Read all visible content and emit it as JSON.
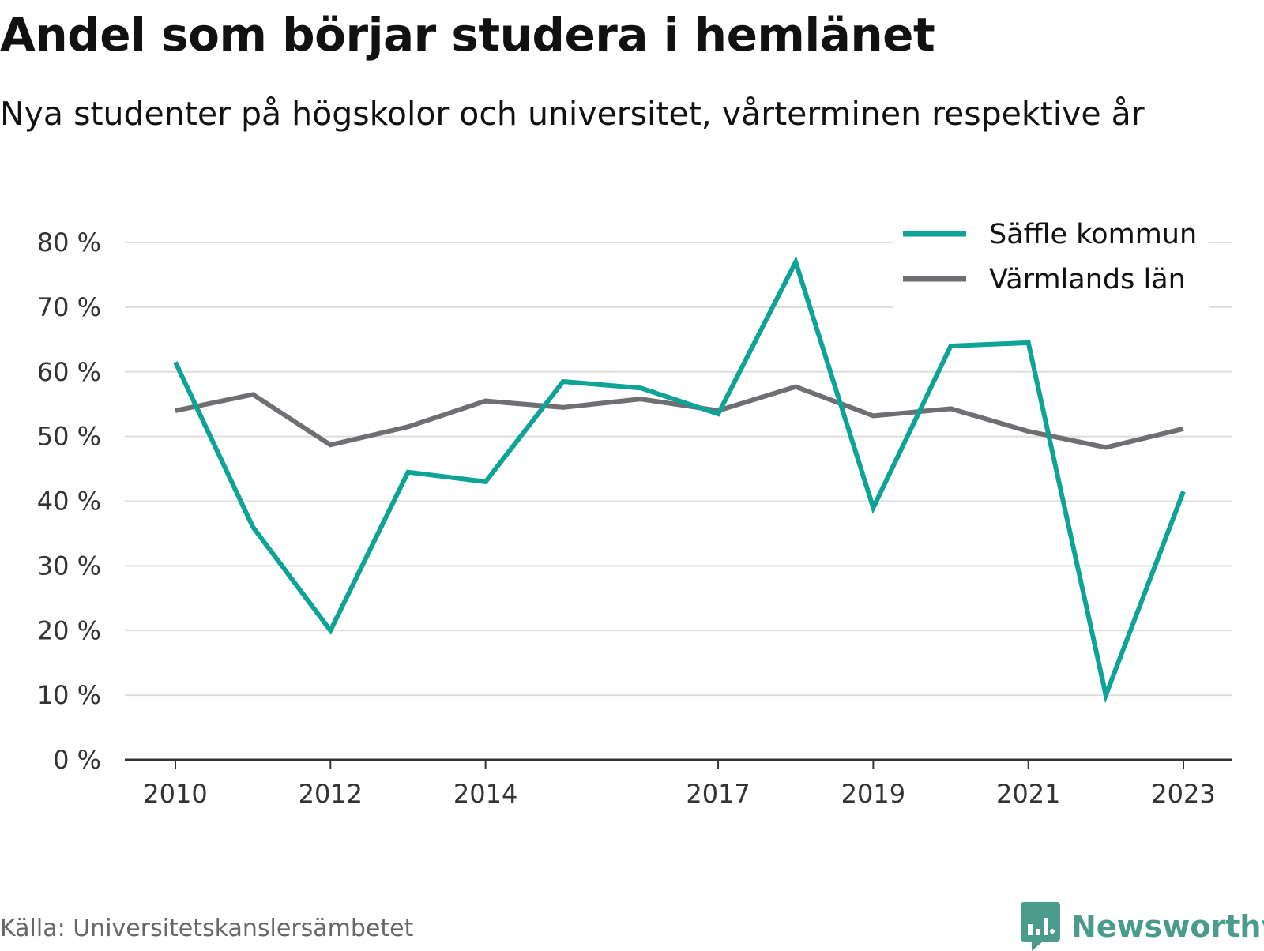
{
  "title": "Andel som börjar studera i hemlänet",
  "subtitle": "Nya studenter på högskolor och universitet, vårterminen respektive år",
  "source": "Källa: Universitetskanslersämbetet",
  "brand": "Newsworthy",
  "brand_icon": "newsworthy-logo-icon",
  "colors": {
    "saffle": "#0da396",
    "varmland": "#6e6e73",
    "grid": "#dddddd",
    "axis": "#333333",
    "brand": "#4a9b8c"
  },
  "chart_data": {
    "type": "line",
    "x": [
      2010,
      2011,
      2012,
      2013,
      2014,
      2015,
      2016,
      2017,
      2018,
      2019,
      2020,
      2021,
      2022,
      2023
    ],
    "x_tick_labels": [
      "2010",
      "2012",
      "2014",
      "2017",
      "2019",
      "2021",
      "2023"
    ],
    "y_tick_labels": [
      "0 %",
      "10 %",
      "20 %",
      "30 %",
      "40 %",
      "50 %",
      "60 %",
      "70 %",
      "80 %"
    ],
    "ylim": [
      0,
      80
    ],
    "grid": true,
    "legend_position": "top-right",
    "series": [
      {
        "name": "Säffle kommun",
        "color": "#0da396",
        "values": [
          61.5,
          36,
          20,
          44.5,
          43,
          58.5,
          57.5,
          53.5,
          77,
          39,
          64,
          64.5,
          10,
          41.5
        ]
      },
      {
        "name": "Värmlands län",
        "color": "#6e6e73",
        "values": [
          54,
          56.5,
          48.7,
          51.5,
          55.5,
          54.5,
          55.8,
          54,
          57.7,
          53.2,
          54.3,
          50.8,
          48.3,
          51.2
        ]
      }
    ]
  }
}
